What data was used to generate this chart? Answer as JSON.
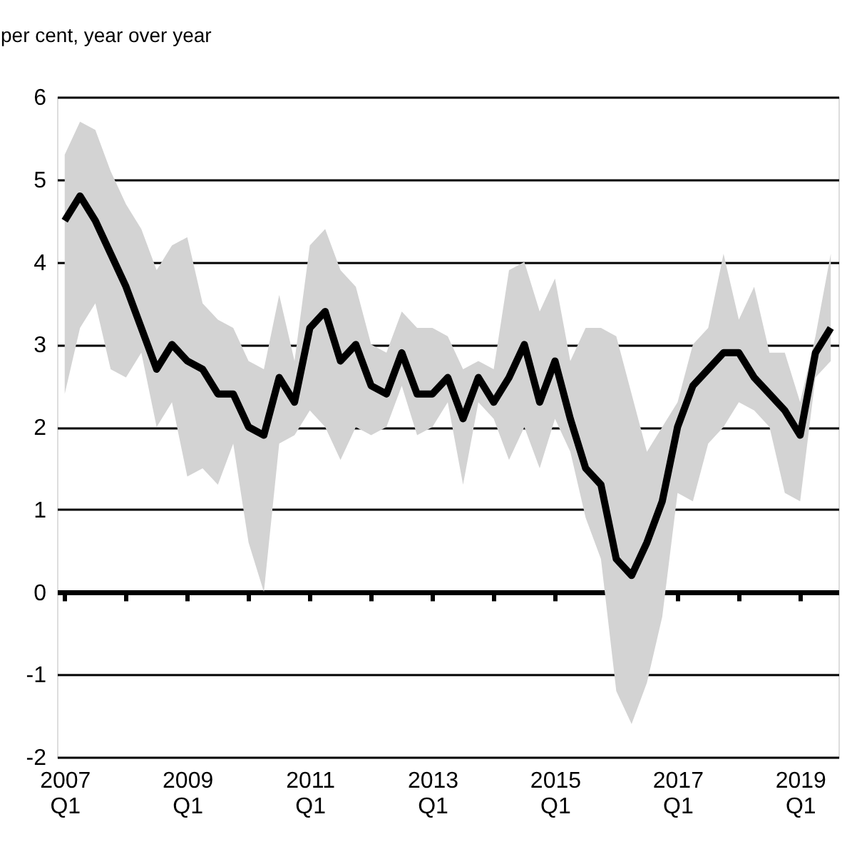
{
  "chart_data": {
    "type": "line",
    "ylabel": "per cent, year over year",
    "categories": [
      "2007 Q1",
      null,
      null,
      null,
      null,
      null,
      null,
      null,
      "2009 Q1",
      null,
      null,
      null,
      null,
      null,
      null,
      null,
      "2011 Q1",
      null,
      null,
      null,
      null,
      null,
      null,
      null,
      "2013 Q1",
      null,
      null,
      null,
      null,
      null,
      null,
      null,
      "2015 Q1",
      null,
      null,
      null,
      null,
      null,
      null,
      null,
      "2017 Q1",
      null,
      null,
      null,
      null,
      null,
      null,
      null,
      "2019 Q1",
      null,
      null
    ],
    "series": [
      {
        "color": "#000000",
        "values": [
          4.5,
          4.8,
          4.5,
          4.1,
          3.7,
          3.2,
          2.7,
          3.0,
          2.8,
          2.7,
          2.4,
          2.4,
          2.0,
          1.9,
          2.6,
          2.3,
          3.2,
          3.4,
          2.8,
          3.0,
          2.5,
          2.4,
          2.9,
          2.4,
          2.4,
          2.6,
          2.1,
          2.6,
          2.3,
          2.6,
          3.0,
          2.3,
          2.8,
          2.1,
          1.5,
          1.3,
          0.4,
          0.2,
          0.6,
          1.1,
          2.0,
          2.5,
          2.7,
          2.9,
          2.9,
          2.6,
          2.4,
          2.2,
          1.9,
          2.9,
          3.2
        ],
        "lower": [
          2.4,
          3.2,
          3.5,
          2.7,
          2.6,
          2.9,
          2.0,
          2.3,
          1.4,
          1.5,
          1.3,
          1.8,
          0.6,
          0.0,
          1.8,
          1.9,
          2.2,
          2.0,
          1.6,
          2.0,
          1.9,
          2.0,
          2.5,
          1.9,
          2.0,
          2.3,
          1.3,
          2.3,
          2.1,
          1.6,
          2.0,
          1.5,
          2.1,
          1.7,
          0.9,
          0.4,
          -1.2,
          -1.6,
          -1.1,
          -0.3,
          1.2,
          1.1,
          1.8,
          2.0,
          2.3,
          2.2,
          2.0,
          1.2,
          1.1,
          2.6,
          2.8
        ],
        "upper": [
          5.3,
          5.7,
          5.6,
          5.1,
          4.7,
          4.4,
          3.9,
          4.2,
          4.3,
          3.5,
          3.3,
          3.2,
          2.8,
          2.7,
          3.6,
          2.8,
          4.2,
          4.4,
          3.9,
          3.7,
          3.0,
          2.9,
          3.4,
          3.2,
          3.2,
          3.1,
          2.7,
          2.8,
          2.7,
          3.9,
          4.0,
          3.4,
          3.8,
          2.8,
          3.2,
          3.2,
          3.1,
          2.4,
          1.7,
          2.0,
          2.3,
          3.0,
          3.2,
          4.1,
          3.3,
          3.7,
          2.9,
          2.9,
          2.3,
          3.1,
          4.1
        ]
      }
    ],
    "ylim": [
      -2,
      6
    ],
    "yticks": [
      -2,
      -1,
      0,
      1,
      2,
      3,
      4,
      5,
      6
    ],
    "grid": "y",
    "ref_lines": [
      {
        "axis": "y",
        "value": 0,
        "color": "#000000"
      }
    ],
    "line_style": "solid",
    "marker": "none"
  }
}
